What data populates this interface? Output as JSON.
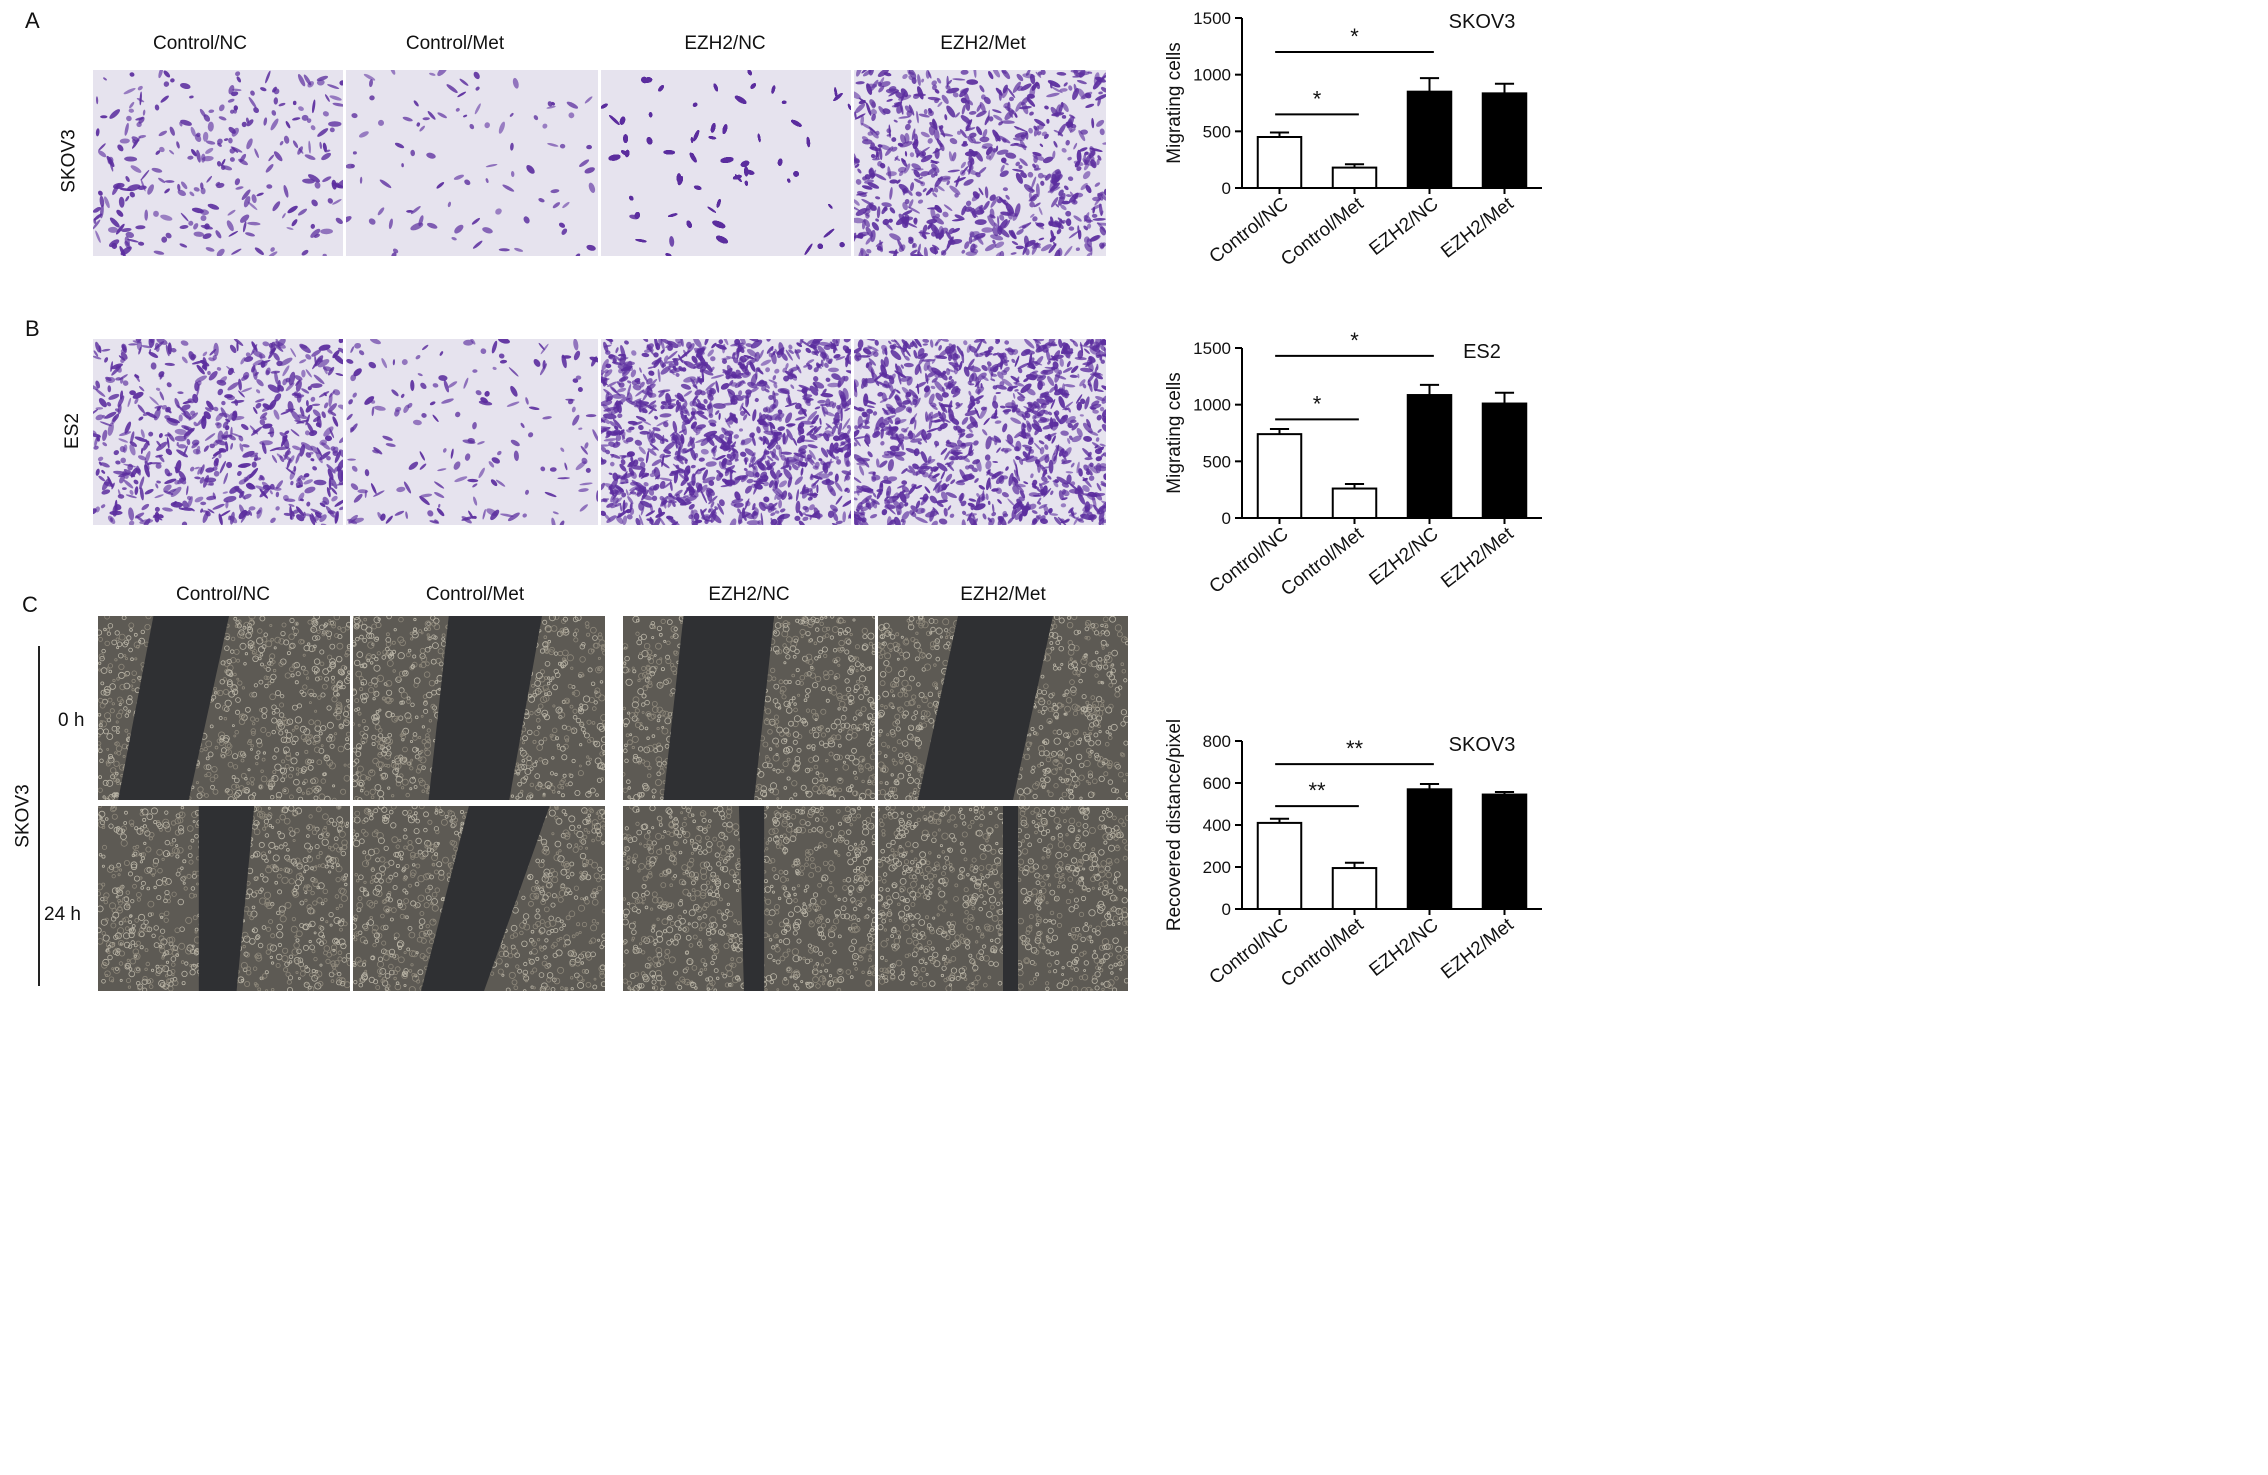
{
  "panels": {
    "a": {
      "label": "A",
      "row_label": "SKOV3",
      "headers": [
        "Control/NC",
        "Control/Met",
        "EZH2/NC",
        "EZH2/Met"
      ]
    },
    "b": {
      "label": "B",
      "row_label": "ES2"
    },
    "c": {
      "label": "C",
      "row_label": "SKOV3",
      "headers": [
        "Control/NC",
        "Control/Met",
        "EZH2/NC",
        "EZH2/Met"
      ],
      "time_labels": [
        "0 h",
        "24 h"
      ]
    }
  },
  "colors": {
    "stain": "#5b2d9e",
    "stain_bg": "#e6e3ee",
    "phase_bg": "#5d5a54",
    "gap": "#2f3033",
    "bar_fill_control": "#ffffff",
    "bar_fill_ezh2": "#000000"
  },
  "chart_data": [
    {
      "type": "bar",
      "title": "SKOV3",
      "categories": [
        "Control/NC",
        "Control/Met",
        "EZH2/NC",
        "EZH2/Met"
      ],
      "values": [
        450,
        180,
        850,
        835
      ],
      "errors": [
        40,
        30,
        120,
        85
      ],
      "ylabel": "Migrating cells",
      "ylim": [
        0,
        1500
      ],
      "yticks": [
        "0",
        "500",
        "1000",
        "1500"
      ],
      "annotations": [
        {
          "text": "*",
          "from": "Control/NC",
          "to": "Control/Met",
          "y": 650
        },
        {
          "text": "*",
          "from": "Control/NC",
          "to": "EZH2/NC",
          "y": 1200
        }
      ]
    },
    {
      "type": "bar",
      "title": "ES2",
      "categories": [
        "Control/NC",
        "Control/Met",
        "EZH2/NC",
        "EZH2/Met"
      ],
      "values": [
        740,
        260,
        1085,
        1010
      ],
      "errors": [
        45,
        40,
        90,
        95
      ],
      "ylabel": "Migrating cells",
      "ylim": [
        0,
        1500
      ],
      "yticks": [
        "0",
        "500",
        "1000",
        "1500"
      ],
      "annotations": [
        {
          "text": "*",
          "from": "Control/NC",
          "to": "Control/Met",
          "y": 870
        },
        {
          "text": "*",
          "from": "Control/NC",
          "to": "EZH2/NC",
          "y": 1430
        }
      ]
    },
    {
      "type": "bar",
      "title": "SKOV3",
      "categories": [
        "Control/NC",
        "Control/Met",
        "EZH2/NC",
        "EZH2/Met"
      ],
      "values": [
        410,
        195,
        570,
        545
      ],
      "errors": [
        20,
        25,
        25,
        12
      ],
      "ylabel": "Recovered distance/pixel",
      "ylim": [
        0,
        800
      ],
      "yticks": [
        "0",
        "200",
        "400",
        "600",
        "800"
      ],
      "annotations": [
        {
          "text": "**",
          "from": "Control/NC",
          "to": "Control/Met",
          "y": 490
        },
        {
          "text": "**",
          "from": "Control/NC",
          "to": "EZH2/NC",
          "y": 690
        }
      ]
    }
  ]
}
